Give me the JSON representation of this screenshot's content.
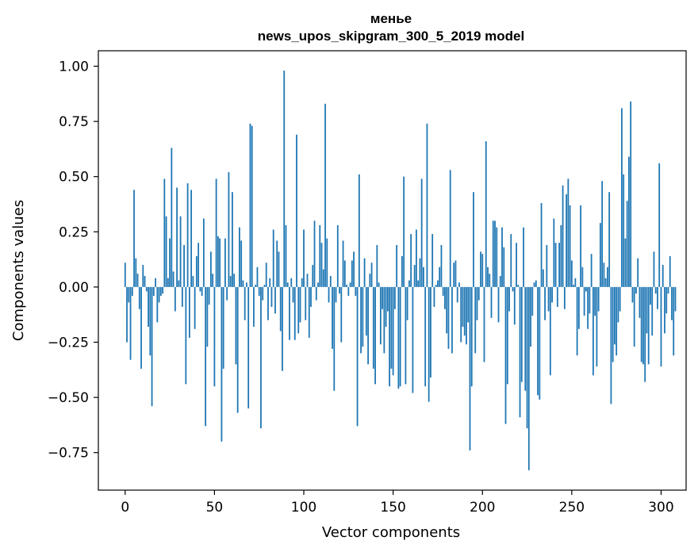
{
  "chart_data": {
    "type": "bar",
    "title": "менье",
    "subtitle": "news_upos_skipgram_300_5_2019 model",
    "xlabel": "Vector components",
    "ylabel": "Components values",
    "xlim": [
      -15,
      314
    ],
    "ylim": [
      -0.92,
      1.07
    ],
    "xticks": [
      0,
      50,
      100,
      150,
      200,
      250,
      300
    ],
    "yticks": [
      -0.75,
      -0.5,
      -0.25,
      0.0,
      0.25,
      0.5,
      0.75,
      1.0
    ],
    "ytick_labels": [
      "−0.75",
      "−0.50",
      "−0.25",
      "0.00",
      "0.25",
      "0.50",
      "0.75",
      "1.00"
    ],
    "bar_color": "#1f77b4",
    "values": [
      0.11,
      -0.25,
      -0.07,
      -0.33,
      -0.04,
      0.44,
      0.13,
      0.06,
      -0.1,
      -0.37,
      0.1,
      0.05,
      -0.02,
      -0.18,
      -0.31,
      -0.54,
      -0.04,
      0.04,
      -0.16,
      -0.07,
      -0.04,
      -0.03,
      0.49,
      0.32,
      0.04,
      0.22,
      0.63,
      0.07,
      -0.11,
      0.45,
      0.03,
      0.32,
      -0.09,
      0.19,
      -0.44,
      0.47,
      -0.23,
      0.44,
      0.05,
      -0.19,
      0.14,
      0.2,
      -0.02,
      -0.04,
      0.31,
      -0.63,
      -0.27,
      -0.08,
      0.16,
      0.06,
      -0.45,
      0.49,
      0.23,
      0.22,
      -0.7,
      -0.37,
      0.22,
      -0.06,
      0.52,
      0.05,
      0.43,
      0.06,
      -0.35,
      -0.57,
      0.27,
      0.21,
      0.03,
      -0.15,
      0.02,
      -0.55,
      0.74,
      0.73,
      -0.18,
      0.01,
      0.09,
      -0.04,
      -0.64,
      -0.06,
      0.01,
      0.11,
      -0.15,
      0.04,
      -0.09,
      0.26,
      -0.12,
      0.21,
      0.16,
      -0.2,
      -0.38,
      0.98,
      0.28,
      0.02,
      -0.24,
      0.04,
      -0.07,
      -0.24,
      0.69,
      -0.21,
      -0.16,
      0.04,
      0.26,
      -0.15,
      0.06,
      -0.23,
      -0.09,
      0.1,
      0.3,
      -0.06,
      0.02,
      0.28,
      0.2,
      0.08,
      0.83,
      0.22,
      -0.07,
      0.05,
      -0.28,
      -0.47,
      -0.07,
      0.28,
      -0.03,
      -0.25,
      0.21,
      0.12,
      0.01,
      -0.04,
      0.02,
      0.12,
      0.16,
      -0.04,
      -0.63,
      0.51,
      -0.3,
      -0.27,
      0.13,
      -0.22,
      -0.35,
      0.06,
      0.11,
      -0.37,
      -0.44,
      0.19,
      0.02,
      -0.26,
      -0.1,
      -0.3,
      -0.18,
      -0.11,
      -0.45,
      -0.37,
      -0.4,
      -0.1,
      0.19,
      -0.46,
      -0.45,
      0.14,
      0.5,
      -0.44,
      -0.15,
      0.03,
      0.24,
      -0.48,
      0.1,
      0.26,
      0.03,
      0.13,
      0.49,
      0.09,
      -0.45,
      0.74,
      -0.52,
      -0.41,
      0.24,
      -0.09,
      0.01,
      0.03,
      0.09,
      0.19,
      -0.04,
      -0.1,
      -0.21,
      -0.28,
      0.53,
      -0.3,
      0.11,
      0.12,
      -0.07,
      0.02,
      -0.25,
      -0.18,
      -0.22,
      -0.26,
      -0.16,
      -0.74,
      -0.45,
      0.43,
      -0.3,
      -0.15,
      -0.06,
      0.16,
      0.15,
      -0.34,
      0.66,
      0.09,
      0.06,
      -0.14,
      0.3,
      0.3,
      0.27,
      -0.16,
      0.05,
      0.27,
      0.18,
      -0.62,
      -0.44,
      -0.11,
      0.24,
      -0.02,
      -0.17,
      0.2,
      0.01,
      -0.59,
      -0.43,
      0.27,
      -0.47,
      -0.64,
      -0.83,
      -0.27,
      -0.13,
      0.02,
      0.03,
      -0.49,
      -0.51,
      0.38,
      0.08,
      -0.15,
      0.19,
      -0.11,
      -0.4,
      -0.07,
      0.31,
      0.2,
      -0.09,
      0.2,
      0.28,
      0.46,
      -0.1,
      0.42,
      0.49,
      0.37,
      0.12,
      0.01,
      0.04,
      -0.31,
      -0.19,
      0.37,
      0.09,
      -0.13,
      -0.02,
      -0.19,
      -0.12,
      0.15,
      -0.4,
      -0.13,
      -0.36,
      -0.11,
      0.29,
      0.48,
      0.11,
      0.04,
      0.09,
      0.43,
      -0.53,
      -0.34,
      -0.26,
      -0.31,
      -0.16,
      -0.11,
      0.81,
      0.51,
      0.22,
      0.39,
      0.59,
      0.84,
      -0.07,
      -0.27,
      -0.03,
      0.13,
      -0.14,
      -0.34,
      -0.35,
      -0.43,
      -0.21,
      -0.35,
      -0.08,
      -0.22,
      0.16,
      -0.03,
      -0.1,
      0.56,
      -0.36,
      0.1,
      -0.21,
      -0.12,
      -0.03,
      0.14,
      -0.15,
      -0.31,
      -0.11
    ]
  }
}
